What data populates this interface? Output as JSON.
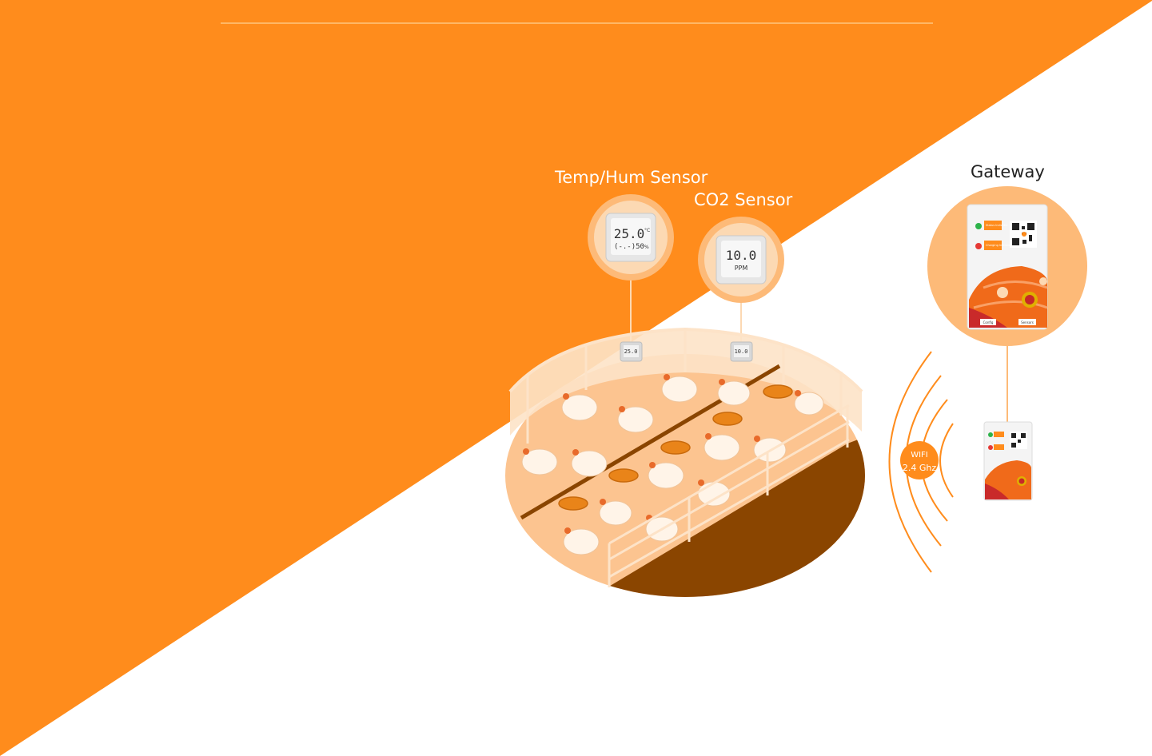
{
  "labels": {
    "temp_hum_sensor": "Temp/Hum Sensor",
    "co2_sensor": "CO2 Sensor",
    "gateway": "Gateway"
  },
  "temp_sensor_display": {
    "main": "25.0",
    "unit": "°C",
    "sub": "(-.-)50",
    "sub_unit": "%"
  },
  "co2_sensor_display": {
    "main": "10.0",
    "unit": "PPM"
  },
  "gateway_device": {
    "status_indicator": "Status Indicator",
    "charging_indicator": "Charging Indicator",
    "config": "Config",
    "sensors": "Sensors"
  },
  "wifi": {
    "line1": "WIFI",
    "line2": "2.4 Ghz"
  },
  "colors": {
    "brand_orange": "#FF8C1C",
    "light_orange": "#FDBA78",
    "pale_orange": "#FCD9B3",
    "dark_brown": "#8A4500",
    "white": "#FFFFFF"
  }
}
